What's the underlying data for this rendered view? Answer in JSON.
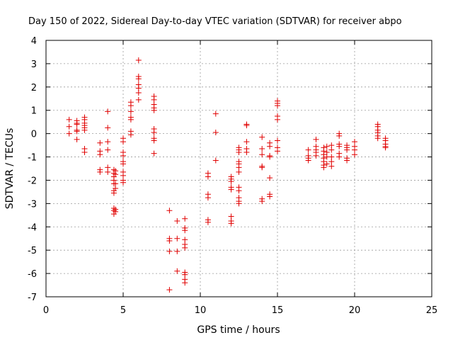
{
  "chart_data": {
    "type": "scatter",
    "title": "Day 150 of 2022, Sidereal Day-to-day VTEC variation (SDTVAR) for receiver abpo",
    "xlabel": "GPS time / hours",
    "ylabel": "SDTVAR / TECUs",
    "xlim": [
      0,
      25
    ],
    "ylim": [
      -7,
      4
    ],
    "xticks": [
      0,
      5,
      10,
      15,
      20,
      25
    ],
    "yticks": [
      -7,
      -6,
      -5,
      -4,
      -3,
      -2,
      -1,
      0,
      1,
      2,
      3,
      4
    ],
    "grid": true,
    "marker": "plus",
    "color": "#e00000",
    "points": [
      [
        1.5,
        0.6
      ],
      [
        1.5,
        0.3
      ],
      [
        1.5,
        0.0
      ],
      [
        2.0,
        0.55
      ],
      [
        2.0,
        0.45
      ],
      [
        2.0,
        0.4
      ],
      [
        2.0,
        0.15
      ],
      [
        2.0,
        0.1
      ],
      [
        2.0,
        -0.25
      ],
      [
        2.5,
        0.7
      ],
      [
        2.5,
        0.6
      ],
      [
        2.5,
        0.45
      ],
      [
        2.5,
        0.35
      ],
      [
        2.5,
        0.25
      ],
      [
        2.5,
        0.15
      ],
      [
        2.5,
        -0.65
      ],
      [
        2.5,
        -0.8
      ],
      [
        3.5,
        -0.4
      ],
      [
        3.5,
        -0.75
      ],
      [
        3.5,
        -0.9
      ],
      [
        3.5,
        -1.55
      ],
      [
        3.5,
        -1.65
      ],
      [
        4.0,
        0.95
      ],
      [
        4.0,
        0.25
      ],
      [
        4.0,
        -0.35
      ],
      [
        4.0,
        -0.7
      ],
      [
        4.0,
        -1.45
      ],
      [
        4.0,
        -1.65
      ],
      [
        4.4,
        -1.55
      ],
      [
        4.4,
        -1.7
      ],
      [
        4.4,
        -1.85
      ],
      [
        4.4,
        -2.0
      ],
      [
        4.4,
        -2.15
      ],
      [
        4.4,
        -2.45
      ],
      [
        4.4,
        -2.55
      ],
      [
        4.4,
        -3.2
      ],
      [
        4.4,
        -3.3
      ],
      [
        4.4,
        -3.45
      ],
      [
        4.5,
        -1.6
      ],
      [
        4.5,
        -1.75
      ],
      [
        4.5,
        -2.15
      ],
      [
        4.5,
        -2.35
      ],
      [
        4.5,
        -3.25
      ],
      [
        4.5,
        -3.35
      ],
      [
        5.0,
        -0.2
      ],
      [
        5.0,
        -0.35
      ],
      [
        5.0,
        -0.8
      ],
      [
        5.0,
        -0.95
      ],
      [
        5.0,
        -1.2
      ],
      [
        5.0,
        -1.3
      ],
      [
        5.0,
        -1.65
      ],
      [
        5.0,
        -1.8
      ],
      [
        5.0,
        -2.0
      ],
      [
        5.0,
        -2.1
      ],
      [
        5.5,
        1.35
      ],
      [
        5.5,
        1.2
      ],
      [
        5.5,
        0.95
      ],
      [
        5.5,
        0.7
      ],
      [
        5.5,
        0.6
      ],
      [
        5.5,
        0.1
      ],
      [
        5.5,
        -0.05
      ],
      [
        6.0,
        3.15
      ],
      [
        6.0,
        2.45
      ],
      [
        6.0,
        2.35
      ],
      [
        6.0,
        2.1
      ],
      [
        6.0,
        1.95
      ],
      [
        6.0,
        1.75
      ],
      [
        6.0,
        1.45
      ],
      [
        7.0,
        1.6
      ],
      [
        7.0,
        1.45
      ],
      [
        7.0,
        1.25
      ],
      [
        7.0,
        1.1
      ],
      [
        7.0,
        1.0
      ],
      [
        7.0,
        0.2
      ],
      [
        7.0,
        0.05
      ],
      [
        7.0,
        -0.2
      ],
      [
        7.0,
        -0.3
      ],
      [
        7.0,
        -0.85
      ],
      [
        8.0,
        -3.3
      ],
      [
        8.0,
        -4.5
      ],
      [
        8.0,
        -4.6
      ],
      [
        8.0,
        -5.05
      ],
      [
        8.0,
        -6.7
      ],
      [
        8.5,
        -3.75
      ],
      [
        8.5,
        -4.5
      ],
      [
        8.5,
        -5.05
      ],
      [
        8.5,
        -5.9
      ],
      [
        9.0,
        -3.65
      ],
      [
        9.0,
        -4.05
      ],
      [
        9.0,
        -4.15
      ],
      [
        9.0,
        -4.55
      ],
      [
        9.0,
        -4.75
      ],
      [
        9.0,
        -4.9
      ],
      [
        9.0,
        -5.95
      ],
      [
        9.0,
        -6.05
      ],
      [
        9.0,
        -6.25
      ],
      [
        9.0,
        -6.4
      ],
      [
        10.5,
        -1.7
      ],
      [
        10.5,
        -1.85
      ],
      [
        10.5,
        -2.6
      ],
      [
        10.5,
        -2.75
      ],
      [
        10.5,
        -3.7
      ],
      [
        10.5,
        -3.8
      ],
      [
        11.0,
        0.85
      ],
      [
        11.0,
        0.05
      ],
      [
        11.0,
        -1.15
      ],
      [
        12.0,
        -1.85
      ],
      [
        12.0,
        -1.95
      ],
      [
        12.0,
        -2.05
      ],
      [
        12.0,
        -2.3
      ],
      [
        12.0,
        -2.4
      ],
      [
        12.0,
        -3.55
      ],
      [
        12.0,
        -3.75
      ],
      [
        12.0,
        -3.85
      ],
      [
        12.5,
        -0.6
      ],
      [
        12.5,
        -0.7
      ],
      [
        12.5,
        -0.8
      ],
      [
        12.5,
        -1.2
      ],
      [
        12.5,
        -1.3
      ],
      [
        12.5,
        -1.45
      ],
      [
        12.5,
        -1.65
      ],
      [
        12.5,
        -2.3
      ],
      [
        12.5,
        -2.45
      ],
      [
        12.5,
        -2.75
      ],
      [
        12.5,
        -2.9
      ],
      [
        12.5,
        -3.0
      ],
      [
        13.0,
        0.4
      ],
      [
        13.0,
        0.35
      ],
      [
        13.0,
        -0.35
      ],
      [
        13.0,
        -0.65
      ],
      [
        13.0,
        -0.8
      ],
      [
        14.0,
        -0.15
      ],
      [
        14.0,
        -0.65
      ],
      [
        14.0,
        -0.9
      ],
      [
        14.0,
        -1.4
      ],
      [
        14.0,
        -1.45
      ],
      [
        14.0,
        -2.8
      ],
      [
        14.0,
        -2.9
      ],
      [
        14.5,
        -0.4
      ],
      [
        14.5,
        -0.55
      ],
      [
        14.5,
        -0.95
      ],
      [
        14.5,
        -1.0
      ],
      [
        14.5,
        -1.9
      ],
      [
        14.5,
        -2.6
      ],
      [
        14.5,
        -2.7
      ],
      [
        15.0,
        1.4
      ],
      [
        15.0,
        1.3
      ],
      [
        15.0,
        1.2
      ],
      [
        15.0,
        0.75
      ],
      [
        15.0,
        0.6
      ],
      [
        15.0,
        -0.3
      ],
      [
        15.0,
        -0.6
      ],
      [
        15.0,
        -0.75
      ],
      [
        17.0,
        -0.7
      ],
      [
        17.0,
        -0.95
      ],
      [
        17.0,
        -1.05
      ],
      [
        17.0,
        -1.15
      ],
      [
        17.5,
        -0.25
      ],
      [
        17.5,
        -0.55
      ],
      [
        17.5,
        -0.7
      ],
      [
        17.5,
        -0.8
      ],
      [
        17.5,
        -0.95
      ],
      [
        18.0,
        -0.6
      ],
      [
        18.0,
        -0.75
      ],
      [
        18.0,
        -0.9
      ],
      [
        18.0,
        -1.05
      ],
      [
        18.0,
        -1.2
      ],
      [
        18.0,
        -1.35
      ],
      [
        18.0,
        -1.45
      ],
      [
        18.2,
        -0.55
      ],
      [
        18.2,
        -0.8
      ],
      [
        18.2,
        -1.0
      ],
      [
        18.2,
        -1.3
      ],
      [
        18.5,
        -0.5
      ],
      [
        18.5,
        -0.7
      ],
      [
        18.5,
        -1.0
      ],
      [
        18.5,
        -1.2
      ],
      [
        18.5,
        -1.4
      ],
      [
        19.0,
        0.0
      ],
      [
        19.0,
        -0.1
      ],
      [
        19.0,
        -0.45
      ],
      [
        19.0,
        -0.55
      ],
      [
        19.0,
        -0.85
      ],
      [
        19.0,
        -1.0
      ],
      [
        19.5,
        -0.5
      ],
      [
        19.5,
        -0.6
      ],
      [
        19.5,
        -0.7
      ],
      [
        19.5,
        -1.05
      ],
      [
        19.5,
        -1.15
      ],
      [
        20.0,
        -0.35
      ],
      [
        20.0,
        -0.55
      ],
      [
        20.0,
        -0.7
      ],
      [
        20.0,
        -0.9
      ],
      [
        21.5,
        0.4
      ],
      [
        21.5,
        0.3
      ],
      [
        21.5,
        0.15
      ],
      [
        21.5,
        0.05
      ],
      [
        21.5,
        -0.1
      ],
      [
        21.5,
        -0.2
      ],
      [
        22.0,
        -0.2
      ],
      [
        22.0,
        -0.3
      ],
      [
        22.0,
        -0.45
      ],
      [
        22.0,
        -0.55
      ],
      [
        22.0,
        -0.6
      ]
    ]
  }
}
